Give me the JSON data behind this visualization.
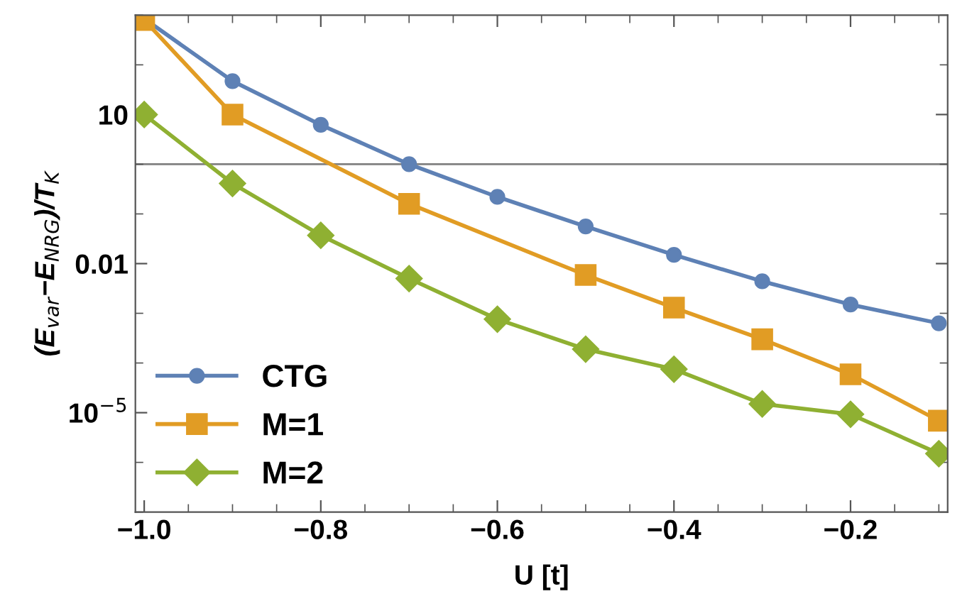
{
  "chart_data": {
    "type": "line",
    "xlabel": "U [t]",
    "ylabel": "(E$_{var}$−E$_{NRG}$)/T$_{K}$",
    "log": "y",
    "xlim": [
      -1.01,
      -0.09
    ],
    "xticks": [
      {
        "value": -1.0,
        "label": "−1.0"
      },
      {
        "value": -0.8,
        "label": "−0.8"
      },
      {
        "value": -0.6,
        "label": "−0.6"
      },
      {
        "value": -0.4,
        "label": "−0.4"
      },
      {
        "value": -0.2,
        "label": "−0.2"
      }
    ],
    "ylim": [
      1e-07,
      1000
    ],
    "yticks": [
      {
        "value": 1e-05,
        "label": "10$^{−5}$"
      },
      0.01,
      10
    ],
    "grid": false,
    "legend": "bottom left",
    "ref_lines": [
      {
        "axis": "y",
        "value": 1,
        "color": "#808080"
      }
    ],
    "series": [
      {
        "name": "CTG",
        "color": "#5e81b5",
        "marker": "circle",
        "x": [
          -1.0,
          -0.9,
          -0.8,
          -0.7,
          -0.6,
          -0.5,
          -0.4,
          -0.3,
          -0.2,
          -0.1
        ],
        "values": [
          850,
          47,
          6.2,
          1.0,
          0.22,
          0.056,
          0.015,
          0.0044,
          0.0015,
          0.00063
        ]
      },
      {
        "name": "M=1",
        "color": "#e19c24",
        "marker": "square",
        "x": [
          -1.0,
          -0.9,
          -0.7,
          -0.5,
          -0.4,
          -0.3,
          -0.2,
          -0.1
        ],
        "values": [
          800,
          10,
          0.16,
          0.0059,
          0.0013,
          0.0003,
          5.9e-05,
          6.9e-06
        ]
      },
      {
        "name": "M=2",
        "color": "#8fb032",
        "marker": "diamond",
        "x": [
          -1.0,
          -0.9,
          -0.8,
          -0.7,
          -0.6,
          -0.5,
          -0.4,
          -0.3,
          -0.2,
          -0.1
        ],
        "values": [
          10,
          0.41,
          0.037,
          0.005,
          0.00076,
          0.00019,
          7.5e-05,
          1.5e-05,
          9.3e-06,
          1.5e-06
        ]
      }
    ]
  }
}
